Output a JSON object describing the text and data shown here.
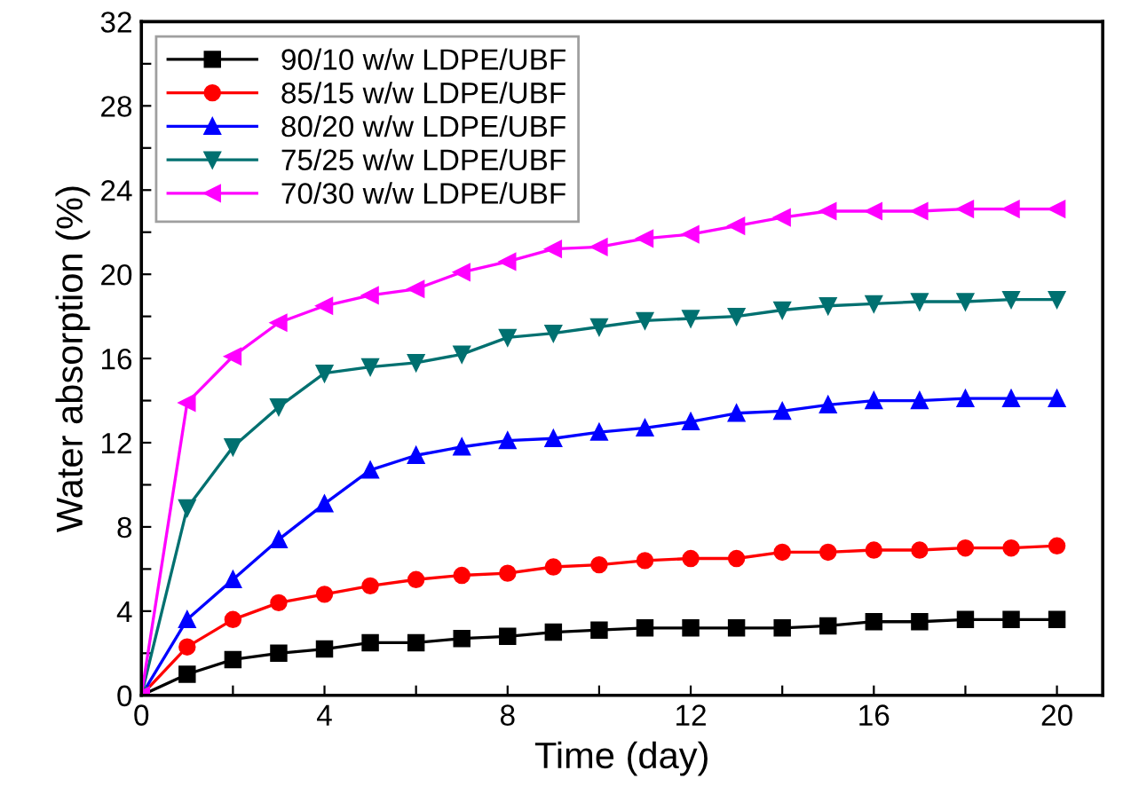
{
  "chart_data": {
    "type": "line",
    "xlabel": "Time (day)",
    "ylabel": "Water absorption (%)",
    "x": [
      0,
      1,
      2,
      3,
      4,
      5,
      6,
      7,
      8,
      9,
      10,
      11,
      12,
      13,
      14,
      15,
      16,
      17,
      18,
      19,
      20
    ],
    "series": [
      {
        "name": "90/10 w/w LDPE/UBF",
        "color": "#000000",
        "marker": "square",
        "values": [
          0,
          1.0,
          1.7,
          2.0,
          2.2,
          2.5,
          2.5,
          2.7,
          2.8,
          3.0,
          3.1,
          3.2,
          3.2,
          3.2,
          3.2,
          3.3,
          3.5,
          3.5,
          3.6,
          3.6,
          3.6
        ]
      },
      {
        "name": "85/15 w/w LDPE/UBF",
        "color": "#ff0000",
        "marker": "circle",
        "values": [
          0,
          2.3,
          3.6,
          4.4,
          4.8,
          5.2,
          5.5,
          5.7,
          5.8,
          6.1,
          6.2,
          6.4,
          6.5,
          6.5,
          6.8,
          6.8,
          6.9,
          6.9,
          7.0,
          7.0,
          7.1
        ]
      },
      {
        "name": "80/20 w/w LDPE/UBF",
        "color": "#0000ff",
        "marker": "triangle",
        "values": [
          0,
          3.6,
          5.5,
          7.4,
          9.1,
          10.7,
          11.4,
          11.8,
          12.1,
          12.2,
          12.5,
          12.7,
          13.0,
          13.4,
          13.5,
          13.8,
          14.0,
          14.0,
          14.1,
          14.1,
          14.1
        ]
      },
      {
        "name": "75/25 w/w LDPE/UBF",
        "color": "#007070",
        "marker": "triangle_down",
        "values": [
          0,
          8.9,
          11.8,
          13.7,
          15.3,
          15.6,
          15.8,
          16.2,
          17.0,
          17.2,
          17.5,
          17.8,
          17.9,
          18.0,
          18.3,
          18.5,
          18.6,
          18.7,
          18.7,
          18.8,
          18.8
        ]
      },
      {
        "name": "70/30 w/w LDPE/UBF",
        "color": "#ff00ff",
        "marker": "triangle_left",
        "values": [
          0,
          13.9,
          16.1,
          17.7,
          18.5,
          19.0,
          19.3,
          20.1,
          20.6,
          21.2,
          21.3,
          21.7,
          21.9,
          22.3,
          22.7,
          23.0,
          23.0,
          23.0,
          23.1,
          23.1,
          23.1
        ]
      }
    ],
    "xlim": [
      0,
      21
    ],
    "xticks": [
      0,
      {
        "value": 2,
        "label": null
      },
      4,
      {
        "value": 6,
        "label": null
      },
      8,
      {
        "value": 10,
        "label": null
      },
      12,
      {
        "value": 14,
        "label": null
      },
      16,
      {
        "value": 18,
        "label": null
      },
      20
    ],
    "ylim": [
      0,
      32
    ],
    "yticks": [
      0,
      {
        "value": 2,
        "label": null
      },
      4,
      {
        "value": 6,
        "label": null
      },
      8,
      {
        "value": 10,
        "label": null
      },
      12,
      {
        "value": 14,
        "label": null
      },
      16,
      {
        "value": 18,
        "label": null
      },
      20,
      {
        "value": 22,
        "label": null
      },
      24,
      {
        "value": 26,
        "label": null
      },
      28,
      {
        "value": 30,
        "label": null
      },
      32
    ],
    "legend": "top left",
    "grid": false,
    "line_style": "solid"
  }
}
